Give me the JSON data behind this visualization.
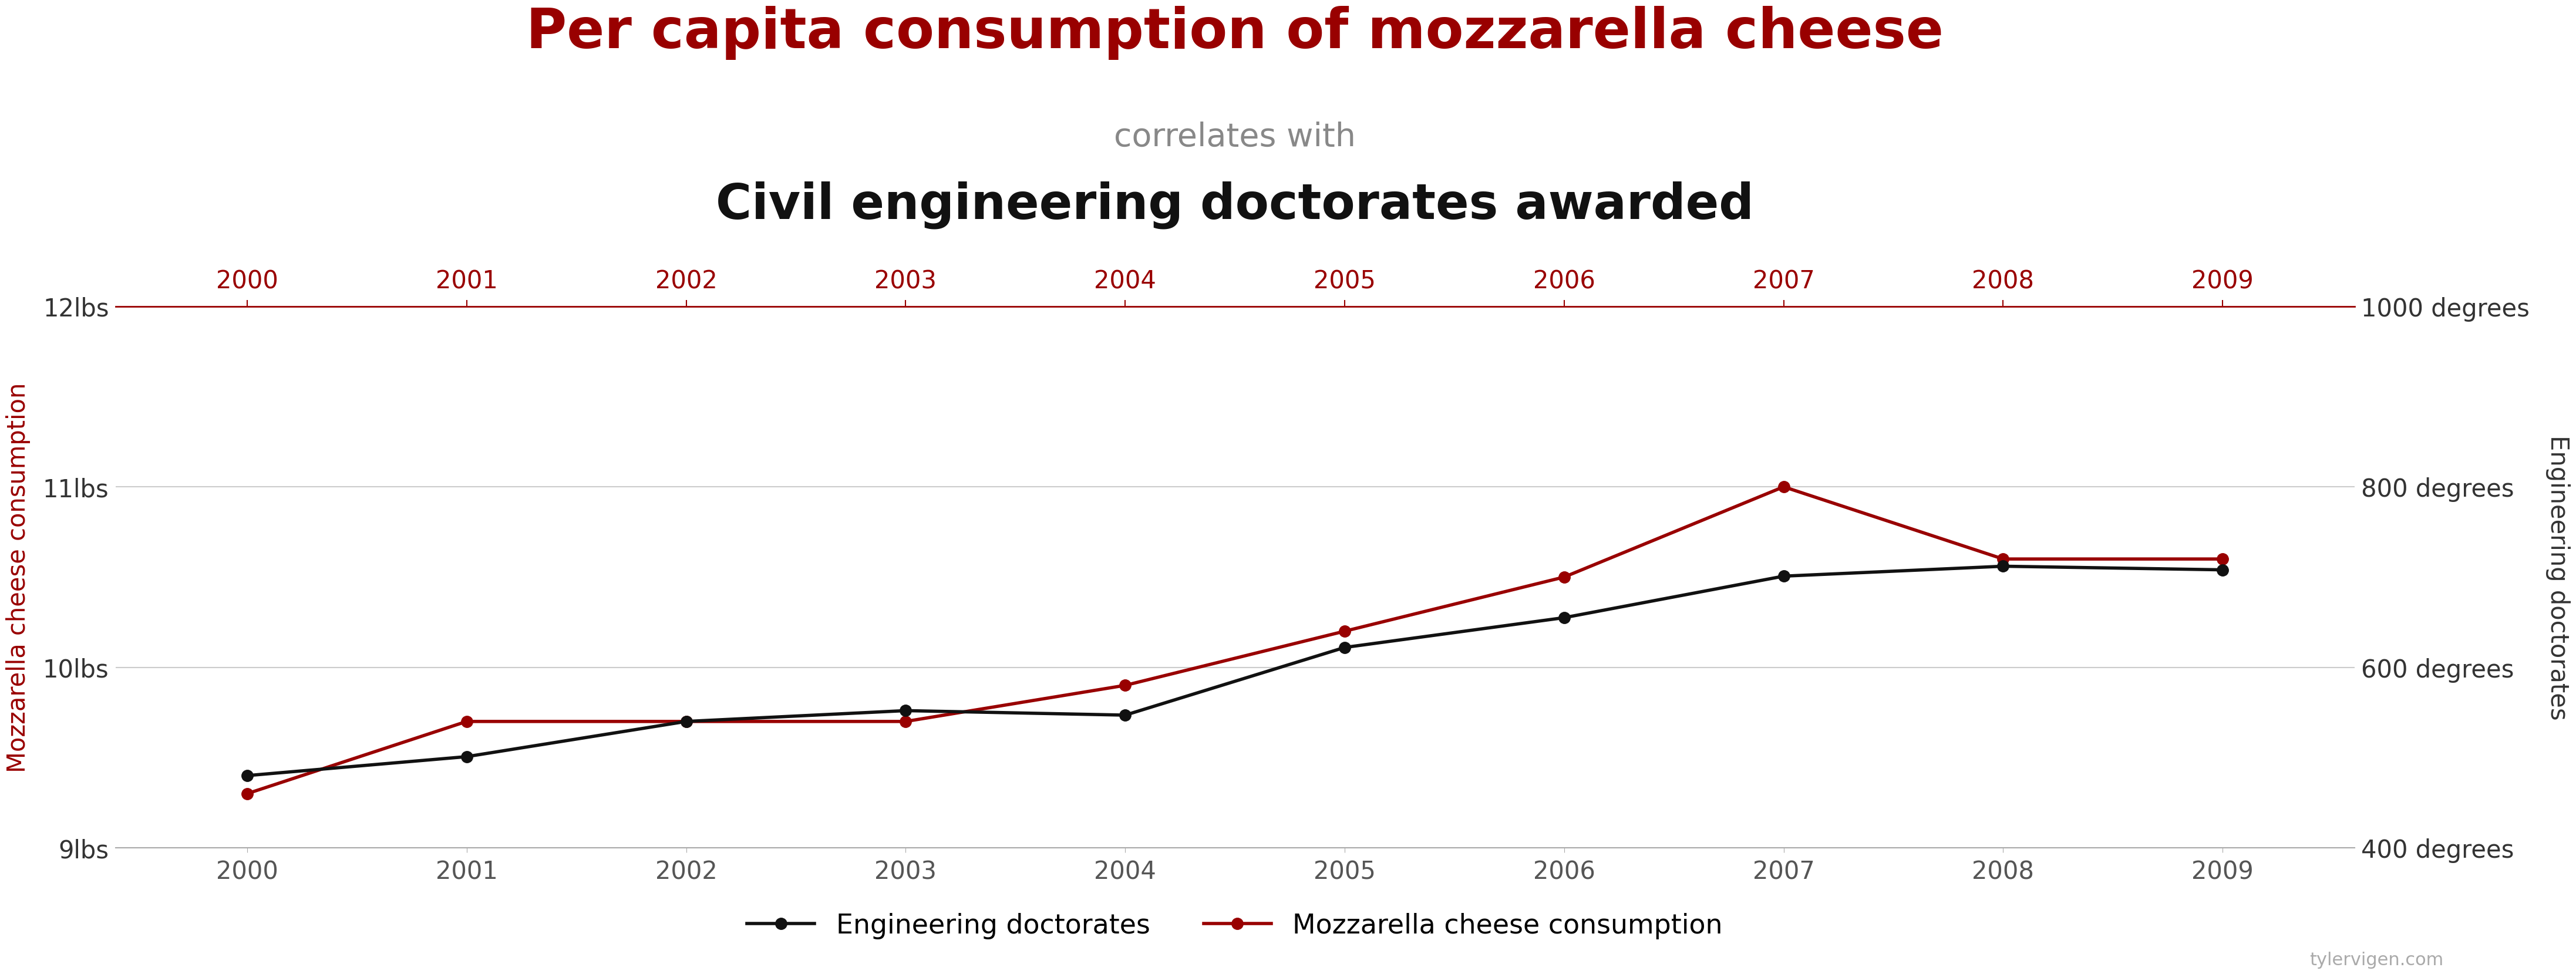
{
  "title_line1": "Per capita consumption of mozzarella cheese",
  "title_line2": "correlates with",
  "title_line3": "Civil engineering doctorates awarded",
  "title_line1_color": "#990000",
  "title_line2_color": "#888888",
  "title_line3_color": "#111111",
  "years": [
    2000,
    2001,
    2002,
    2003,
    2004,
    2005,
    2006,
    2007,
    2008,
    2009
  ],
  "mozzarella": [
    9.3,
    9.7,
    9.7,
    9.7,
    9.9,
    10.2,
    10.5,
    11.0,
    10.6,
    10.6
  ],
  "doctorates": [
    480,
    501,
    540,
    552,
    547,
    622,
    655,
    701,
    712,
    708
  ],
  "mozzarella_color": "#990000",
  "doctorates_color": "#111111",
  "ylabel_left": "Mozzarella cheese consumption",
  "ylabel_right": "Engineering doctorates",
  "ylim_left": [
    9.0,
    12.0
  ],
  "ylim_right": [
    400,
    1000
  ],
  "yticks_left": [
    9.0,
    10.0,
    11.0,
    12.0
  ],
  "ytick_labels_left": [
    "9lbs",
    "10lbs",
    "11lbs",
    "12lbs"
  ],
  "yticks_right": [
    400,
    600,
    800,
    1000
  ],
  "ytick_labels_right": [
    "400 degrees",
    "600 degrees",
    "800 degrees",
    "1000 degrees"
  ],
  "grid_yticks": [
    9.0,
    10.0,
    11.0,
    12.0
  ],
  "grid_color": "#cccccc",
  "top_axis_color": "#990000",
  "bottom_axis_color": "#aaaaaa",
  "background_color": "#ffffff",
  "legend_label_doctorates": "Engineering doctorates",
  "legend_label_mozzarella": "Mozzarella cheese consumption",
  "watermark": "tylervigen.com",
  "line_width": 4.0,
  "marker_size": 14
}
